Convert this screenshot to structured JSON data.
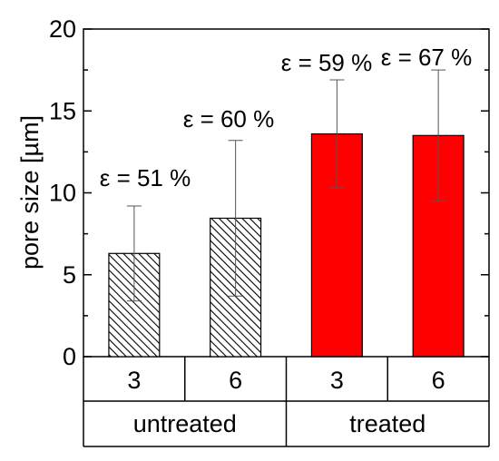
{
  "chart_data": {
    "type": "bar",
    "ylabel": "pore size [µm]",
    "ylim": [
      0,
      20
    ],
    "yticks": [
      0,
      5,
      10,
      15,
      20
    ],
    "bars": [
      {
        "group": "untreated",
        "category": "3",
        "value": 6.3,
        "error": 2.9,
        "annotation": "ε = 51 %",
        "style": "hatched"
      },
      {
        "group": "untreated",
        "category": "6",
        "value": 8.45,
        "error": 4.75,
        "annotation": "ε = 60 %",
        "style": "hatched"
      },
      {
        "group": "treated",
        "category": "3",
        "value": 13.6,
        "error": 3.3,
        "annotation": "ε = 59 %",
        "style": "solid"
      },
      {
        "group": "treated",
        "category": "6",
        "value": 13.5,
        "error": 4.0,
        "annotation": "ε = 67 %",
        "style": "solid"
      }
    ],
    "groups": [
      "untreated",
      "treated"
    ],
    "colors": {
      "treated": "#ff0000",
      "untreated_hatch": "#000000",
      "axis": "#000000",
      "error_bar": "#555555"
    }
  }
}
